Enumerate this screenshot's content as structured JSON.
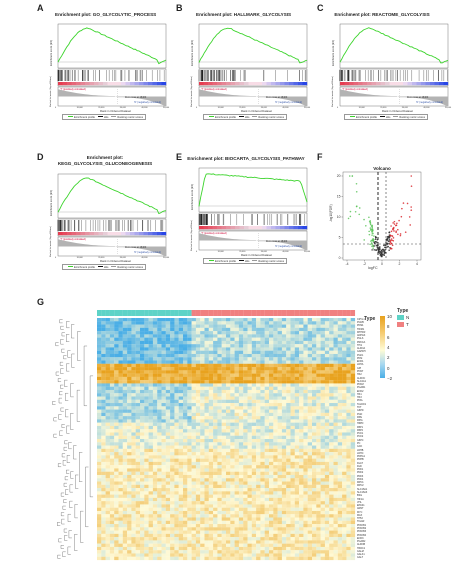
{
  "panels": {
    "A": {
      "label": "A",
      "title": "Enrichment plot: GO_GLYCOLYTIC_PROCESS"
    },
    "B": {
      "label": "B",
      "title": "Enrichment plot: HALLMARK_GLYCOLYSIS"
    },
    "C": {
      "label": "C",
      "title": "Enrichment plot: REACTOME_GLYCOLYSIS"
    },
    "D": {
      "label": "D",
      "title_line1": "Enrichment plot:",
      "title_line2": "KEGG_GLYCOLYSIS_GLUCONEOGENESIS"
    },
    "E": {
      "label": "E",
      "title": "Enrichment plot: BIOCARTA_GLYCOLYSIS_PATHWAY"
    },
    "F": {
      "label": "F",
      "title": "Volcano"
    },
    "G": {
      "label": "G"
    }
  },
  "gsea_common": {
    "ylabel_top": "Enrichment score (ES)",
    "ylabel_bottom": "Ranked list metric (Signal2Noise)",
    "xlabel": "Rank in Ordered Dataset",
    "zero_cross": "Zero cross at 18400",
    "pos_label": "'T' (positively correlated)",
    "neg_label": "'N' (negatively correlated)",
    "legend_profile": "Enrichment profile",
    "legend_hits": "Hits",
    "legend_metric": "Ranking metric scores",
    "xticks": [
      "0",
      "10,000",
      "20,000",
      "30,000",
      "40,000",
      "50,000"
    ]
  },
  "volcano": {
    "xlabel": "logFC",
    "ylabel": "-log10(FDR)",
    "xticks": [
      "-4",
      "-2",
      "0",
      "2",
      "4"
    ],
    "yticks": [
      "0",
      "5",
      "10",
      "15",
      "20"
    ],
    "colors": {
      "up": "#d9262c",
      "down": "#5cc45a",
      "ns": "#333333"
    }
  },
  "heatmap": {
    "legend_title": "Type",
    "legend_items": [
      {
        "label": "N",
        "color": "#5ed3c7"
      },
      {
        "label": "T",
        "color": "#f08080"
      }
    ],
    "scale_ticks": [
      "10",
      "8",
      "6",
      "4",
      "2",
      "0",
      "−2"
    ],
    "colors": {
      "high": "#e8a21e",
      "mid": "#fffcd6",
      "low": "#4aaee6"
    },
    "genes": [
      "CRYL1",
      "PGM5",
      "PKM1",
      "TRIM1",
      "MTHFR",
      "ADPGK",
      "PGLS",
      "PRKCA",
      "TPI1",
      "ALDOA",
      "GAPDH",
      "PGK1",
      "PKM",
      "ENO1",
      "LDHA",
      "GPI",
      "PFKP",
      "HK2",
      "ALDOC",
      "SLC2A1",
      "PFKM",
      "PGAM1",
      "ENO2",
      "HK1",
      "HK3",
      "PFKL",
      "TALDO1",
      "TKT",
      "G6PD",
      "PGD",
      "RPE",
      "RPIA",
      "H6PD",
      "FBP1",
      "FBP2",
      "PCK1",
      "PCK2",
      "G6PC",
      "PC",
      "GCK",
      "LDHB",
      "LDHC",
      "PDHA1",
      "PDHB",
      "DLAT",
      "DLD",
      "PDK1",
      "PDK2",
      "PDK3",
      "PDK4",
      "MPC1",
      "MPC2",
      "SLC16A1",
      "SLC16A3",
      "BSG",
      "HIF1A",
      "VHL",
      "EPAS1",
      "ARNT",
      "MYC",
      "MAX",
      "TP53",
      "TIGAR",
      "PFKFB1",
      "PFKFB2",
      "PFKFB3",
      "PFKFB4",
      "ENO3",
      "PGAM2",
      "ALDOB",
      "HKDC1",
      "GALM",
      "GALK1",
      "GALT"
    ]
  }
}
